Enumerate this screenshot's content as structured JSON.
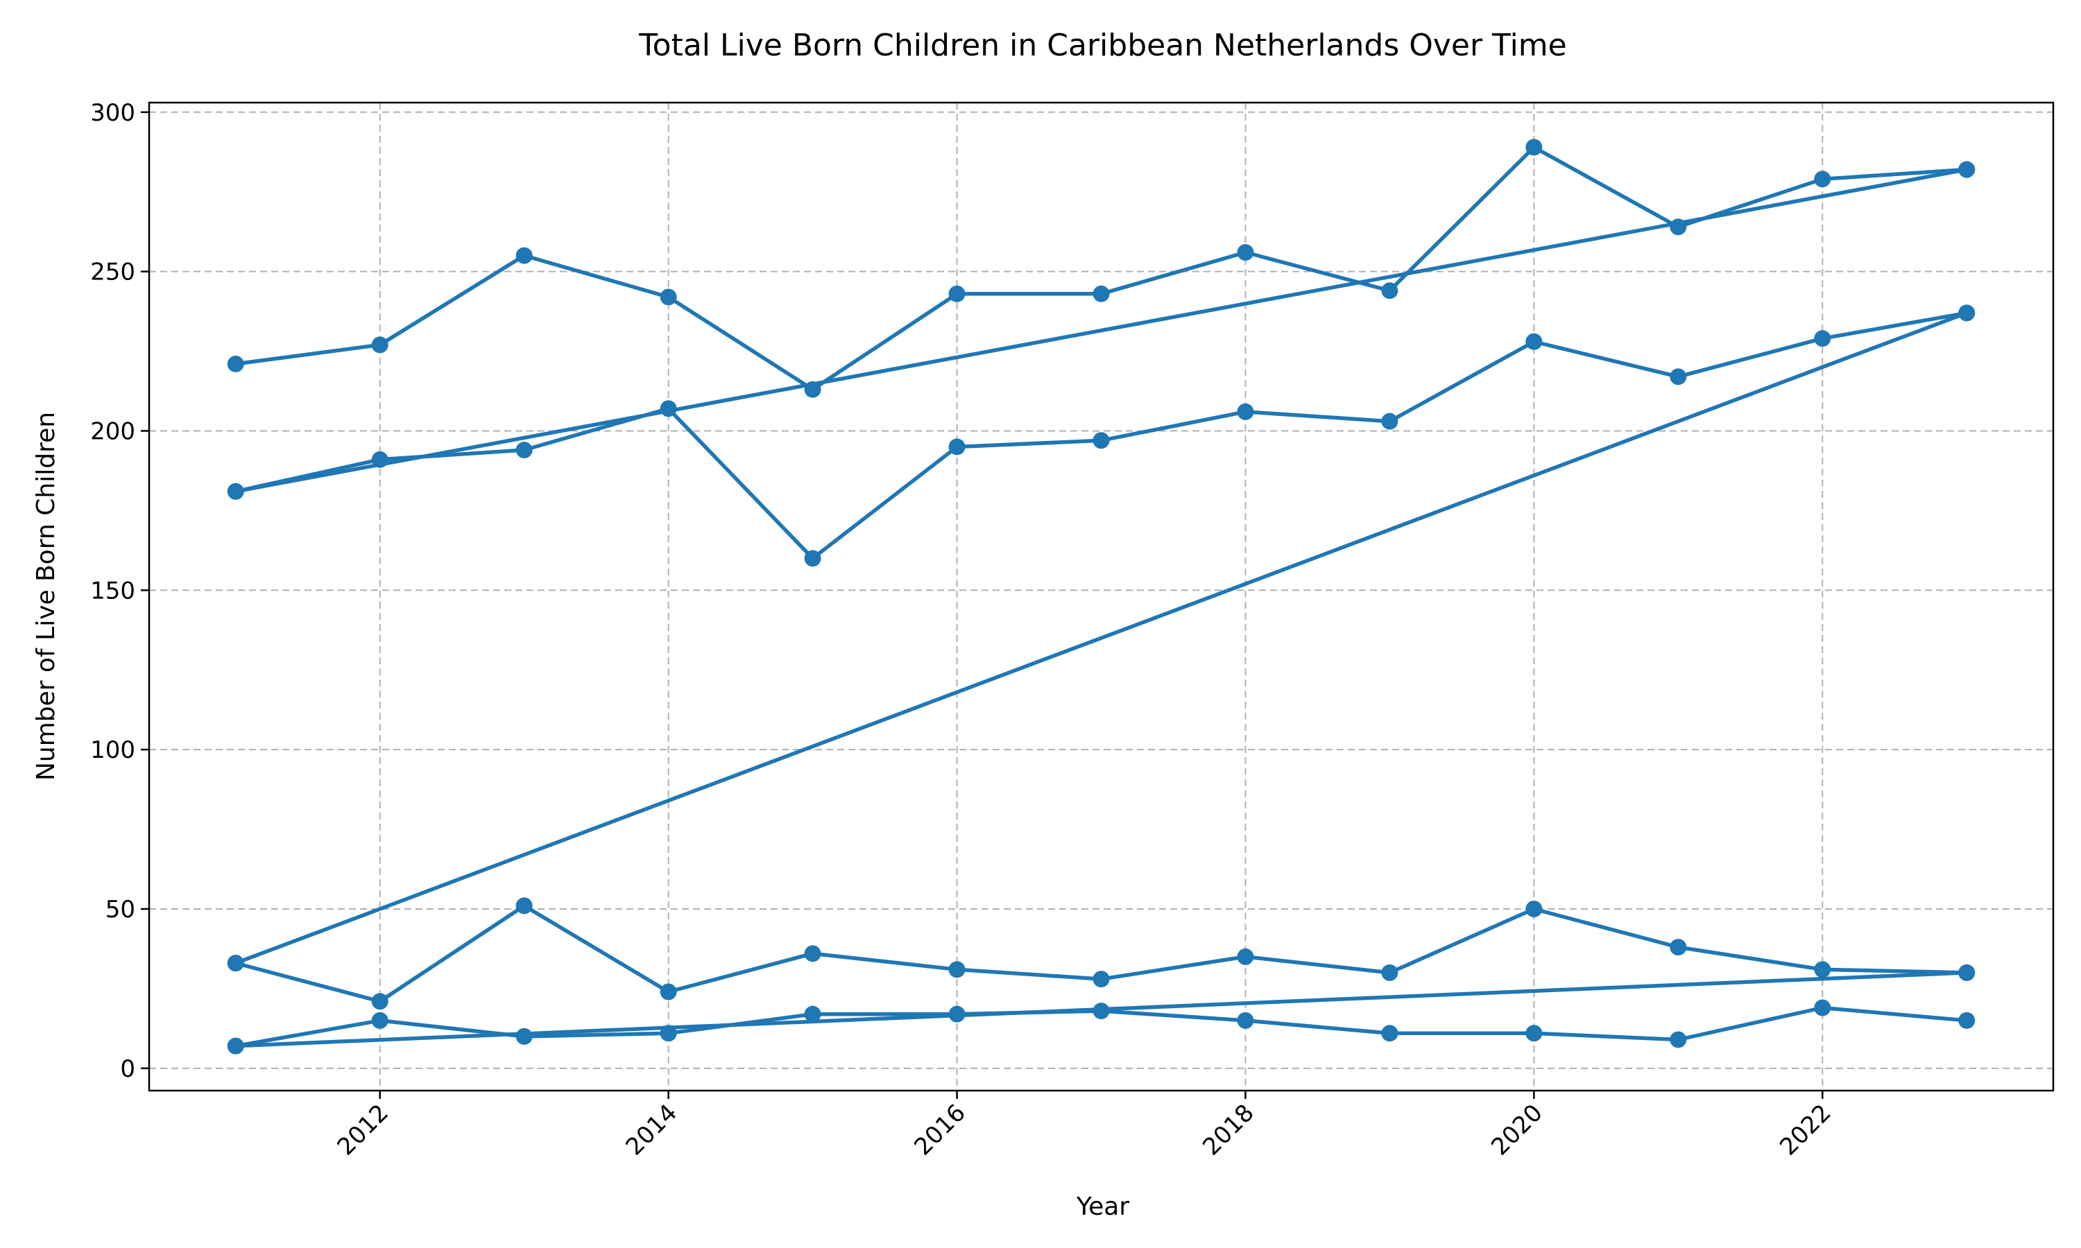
{
  "chart_data": {
    "type": "line",
    "title": "Total Live Born Children in Caribbean Netherlands Over Time",
    "xlabel": "Year",
    "ylabel": "Number of Live Born Children",
    "xlim": [
      2010.4,
      2023.6
    ],
    "ylim": [
      -7,
      303
    ],
    "xticks": [
      2012,
      2014,
      2016,
      2018,
      2020,
      2022
    ],
    "yticks": [
      0,
      50,
      100,
      150,
      200,
      250,
      300
    ],
    "grid": true,
    "color": "#1f77b4",
    "series": [
      {
        "x": [
          2011,
          2012,
          2013,
          2014,
          2015,
          2016,
          2017,
          2018,
          2019,
          2020,
          2021,
          2022,
          2023
        ],
        "values": [
          221,
          227,
          255,
          242,
          213,
          243,
          243,
          256,
          244,
          289,
          264,
          279,
          282
        ]
      },
      {
        "x": [
          2011,
          2023
        ],
        "values": [
          181,
          282
        ]
      },
      {
        "x": [
          2011,
          2012,
          2013,
          2014,
          2015,
          2016,
          2017,
          2018,
          2019,
          2020,
          2021,
          2022,
          2023
        ],
        "values": [
          181,
          191,
          194,
          207,
          160,
          195,
          197,
          206,
          203,
          228,
          217,
          229,
          237
        ]
      },
      {
        "x": [
          2011,
          2023
        ],
        "values": [
          33,
          237
        ]
      },
      {
        "x": [
          2011,
          2012,
          2013,
          2014,
          2015,
          2016,
          2017,
          2018,
          2019,
          2020,
          2021,
          2022,
          2023
        ],
        "values": [
          33,
          21,
          51,
          24,
          36,
          31,
          28,
          35,
          30,
          50,
          38,
          31,
          30
        ]
      },
      {
        "x": [
          2011,
          2023
        ],
        "values": [
          7,
          30
        ]
      },
      {
        "x": [
          2011,
          2012,
          2013,
          2014,
          2015,
          2016,
          2017,
          2018,
          2019,
          2020,
          2021,
          2022,
          2023
        ],
        "values": [
          7,
          15,
          10,
          11,
          17,
          17,
          18,
          15,
          11,
          11,
          9,
          19,
          15
        ]
      }
    ]
  }
}
